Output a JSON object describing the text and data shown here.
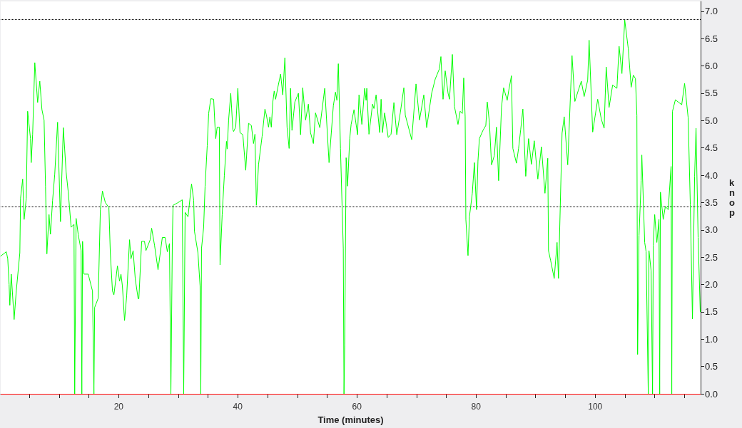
{
  "chart_data": {
    "type": "line",
    "xlabel": "Time (minutes)",
    "ylabel": "knop",
    "xlim": [
      0.2,
      117.7
    ],
    "xticks": [
      {
        "value": 5,
        "label": null
      },
      {
        "value": 10,
        "label": null
      },
      {
        "value": 15,
        "label": null
      },
      20,
      {
        "value": 25,
        "label": null
      },
      {
        "value": 30,
        "label": null
      },
      {
        "value": 35,
        "label": null
      },
      40,
      {
        "value": 45,
        "label": null
      },
      {
        "value": 50,
        "label": null
      },
      {
        "value": 55,
        "label": null
      },
      60,
      {
        "value": 65,
        "label": null
      },
      {
        "value": 70,
        "label": null
      },
      {
        "value": 75,
        "label": null
      },
      80,
      {
        "value": 85,
        "label": null
      },
      {
        "value": 90,
        "label": null
      },
      {
        "value": 95,
        "label": null
      },
      100,
      {
        "value": 105,
        "label": null
      },
      {
        "value": 110,
        "label": null
      },
      {
        "value": 115,
        "label": null
      }
    ],
    "ylim": [
      0,
      7.18
    ],
    "yticks": [
      {
        "value": 0,
        "label": "0.0"
      },
      0.5,
      {
        "value": 1,
        "label": "1.0"
      },
      1.5,
      {
        "value": 2,
        "label": "2.0"
      },
      2.5,
      {
        "value": 3,
        "label": "3.0"
      },
      3.5,
      {
        "value": 4,
        "label": "4.0"
      },
      4.5,
      {
        "value": 5,
        "label": "5.0"
      },
      5.5,
      {
        "value": 6,
        "label": "6.0"
      },
      6.5,
      {
        "value": 7,
        "label": "7.0"
      }
    ],
    "grid": false,
    "marker": "none",
    "line_style": "solid",
    "ref_lines": [
      {
        "axis": "y",
        "value": 6.85,
        "color": "#000000",
        "line_style": "dotted"
      },
      {
        "axis": "y",
        "value": 3.43,
        "color": "#000000",
        "line_style": "dotted"
      },
      {
        "axis": "y",
        "value": 0,
        "color": "#ff0000",
        "line_style": "solid"
      }
    ],
    "series": [
      {
        "color": "#00ff00",
        "x": [
          0.2,
          1.14,
          1.38,
          1.61,
          1.73,
          1.97,
          2.45,
          2.81,
          3.41,
          3.53,
          3.89,
          4.13,
          4.49,
          4.72,
          5.2,
          5.32,
          5.56,
          5.92,
          6.4,
          6.76,
          7.12,
          7.48,
          7.72,
          7.95,
          8.31,
          8.55,
          8.91,
          9.27,
          9.75,
          10.23,
          10.71,
          11.18,
          11.54,
          12.02,
          12.5,
          12.62,
          12.86,
          13.22,
          13.7,
          13.82,
          13.94,
          14.17,
          14.89,
          15.61,
          15.85,
          15.97,
          16.57,
          16.93,
          17.28,
          17.76,
          18.36,
          18.6,
          18.96,
          19.2,
          19.8,
          20.15,
          20.39,
          20.63,
          20.99,
          21.35,
          21.83,
          22.07,
          22.43,
          22.79,
          23.27,
          23.39,
          23.86,
          24.34,
          24.58,
          25.3,
          25.54,
          26.02,
          26.61,
          27.33,
          27.81,
          28.17,
          28.53,
          28.77,
          29.01,
          29.13,
          29.84,
          30.68,
          30.92,
          31.16,
          31.64,
          32.24,
          32.6,
          32.72,
          33.31,
          33.67,
          33.79,
          33.91,
          34.27,
          34.51,
          34.87,
          35.11,
          35.47,
          35.95,
          36.18,
          36.3,
          36.54,
          36.9,
          37.02,
          37.38,
          37.74,
          38.1,
          38.22,
          38.46,
          38.82,
          39.17,
          39.29,
          39.65,
          40.01,
          40.37,
          40.85,
          41.33,
          41.81,
          42.28,
          42.64,
          42.88,
          43.12,
          43.48,
          44.08,
          44.56,
          44.8,
          45.16,
          45.39,
          45.63,
          45.87,
          46.11,
          46.35,
          46.71,
          47.19,
          47.55,
          47.91,
          48.27,
          48.62,
          48.86,
          49.1,
          49.58,
          50.18,
          50.54,
          50.9,
          51.38,
          51.85,
          52.21,
          52.69,
          53.05,
          53.77,
          54.6,
          55.32,
          56.04,
          56.4,
          56.64,
          56.88,
          57.24,
          57.71,
          57.83,
          57.95,
          58.19,
          58.43,
          58.79,
          59.03,
          59.51,
          60.11,
          60.35,
          60.83,
          61.3,
          61.54,
          61.66,
          62.02,
          62.62,
          62.86,
          63.22,
          63.82,
          64.06,
          64.29,
          64.65,
          65.25,
          65.73,
          66.21,
          66.69,
          67.28,
          67.88,
          68.12,
          69.2,
          69.92,
          70.51,
          71.23,
          71.71,
          72.55,
          73.15,
          73.86,
          74.1,
          74.46,
          74.82,
          75.3,
          75.54,
          76.02,
          76.37,
          76.97,
          77.33,
          77.69,
          77.93,
          78.17,
          78.29,
          78.65,
          78.89,
          79.37,
          79.72,
          80.08,
          80.32,
          80.56,
          81.16,
          81.64,
          81.88,
          82.24,
          82.6,
          83.07,
          83.43,
          83.79,
          84.27,
          84.63,
          85.23,
          85.47,
          85.94,
          86.18,
          86.78,
          87.14,
          87.5,
          87.86,
          88.34,
          88.82,
          89.29,
          89.77,
          90.37,
          90.97,
          91.57,
          92.04,
          92.16,
          92.52,
          93.12,
          93.6,
          93.84,
          94.44,
          94.8,
          95.39,
          96.11,
          96.59,
          97.19,
          97.67,
          98.15,
          98.74,
          98.98,
          99.58,
          100.42,
          101.02,
          101.5,
          101.85,
          102.33,
          102.93,
          103.65,
          104.01,
          104.49,
          104.96,
          105.56,
          106.04,
          106.4,
          106.76,
          107.0,
          107.12,
          107.36,
          107.72,
          107.83,
          108.31,
          108.55,
          108.91,
          109.03,
          109.39,
          109.63,
          109.75,
          109.99,
          110.35,
          110.71,
          110.83,
          110.95,
          111.42,
          111.78,
          112.26,
          112.74,
          112.86,
          112.98,
          113.46,
          114.05,
          114.53,
          115.01,
          115.61,
          115.97,
          116.33,
          116.69,
          116.93,
          117.28,
          117.64
        ],
        "values": [
          2.52,
          2.6,
          2.47,
          2.0,
          1.62,
          2.19,
          1.36,
          1.88,
          2.58,
          3.58,
          3.93,
          3.19,
          3.58,
          5.17,
          4.67,
          4.23,
          4.75,
          6.06,
          5.33,
          5.72,
          5.2,
          5.01,
          3.8,
          2.56,
          3.28,
          2.92,
          3.54,
          4.02,
          4.97,
          3.15,
          4.87,
          4.06,
          3.69,
          3.05,
          3.1,
          0,
          3.21,
          2.91,
          2.62,
          0,
          2.79,
          2.19,
          2.19,
          1.88,
          0,
          1.58,
          1.75,
          3.37,
          3.71,
          3.5,
          3.41,
          2.58,
          1.88,
          1.81,
          2.34,
          2.06,
          2.19,
          1.97,
          1.34,
          1.8,
          2.82,
          2.47,
          2.62,
          2.1,
          1.74,
          1.74,
          2.79,
          2.79,
          2.62,
          2.82,
          3.03,
          2.72,
          2.27,
          2.86,
          2.86,
          2.6,
          2.75,
          0,
          2.79,
          3.45,
          3.49,
          3.55,
          0,
          3.32,
          3.24,
          3.84,
          3.54,
          2.98,
          2.58,
          1.97,
          0,
          2.66,
          3.05,
          3.8,
          4.54,
          5.13,
          5.4,
          5.39,
          4.88,
          4.67,
          4.88,
          4.88,
          2.36,
          3.28,
          3.99,
          4.62,
          4.48,
          5.01,
          5.5,
          4.84,
          4.8,
          4.88,
          5.59,
          4.78,
          4.74,
          4.09,
          4.95,
          4.91,
          4.58,
          4.75,
          3.45,
          4.19,
          4.71,
          5.21,
          5.1,
          4.88,
          5.07,
          4.88,
          5.33,
          5.54,
          5.39,
          5.6,
          5.85,
          5.47,
          6.15,
          4.88,
          4.49,
          5.59,
          4.82,
          5.34,
          5.5,
          4.74,
          5.6,
          5.01,
          5.3,
          4.78,
          4.58,
          5.14,
          4.87,
          5.59,
          4.23,
          5.27,
          5.52,
          5.37,
          6.04,
          4.49,
          2.66,
          0,
          0.89,
          4.32,
          3.8,
          4.67,
          4.93,
          5.2,
          4.74,
          5.47,
          4.93,
          5.59,
          5.37,
          5.59,
          4.75,
          5.3,
          5.22,
          5.47,
          4.78,
          5.39,
          4.78,
          5.14,
          4.69,
          4.75,
          5.33,
          4.74,
          5.14,
          5.6,
          5.1,
          4.65,
          5.67,
          5.01,
          5.47,
          4.87,
          5.5,
          5.76,
          5.95,
          6.17,
          5.39,
          5.91,
          5.5,
          5.39,
          6.21,
          5.26,
          4.93,
          5.17,
          5.13,
          5.78,
          5.07,
          3.19,
          2.53,
          3.24,
          3.67,
          4.23,
          3.37,
          4.26,
          4.67,
          4.82,
          4.91,
          5.34,
          4.97,
          4.19,
          4.36,
          4.88,
          3.9,
          5.24,
          5.6,
          5.37,
          5.54,
          5.82,
          4.49,
          4.22,
          4.49,
          4.84,
          5.21,
          3.98,
          4.67,
          4.2,
          4.63,
          3.93,
          4.52,
          3.67,
          4.31,
          2.62,
          2.44,
          2.11,
          2.77,
          2.11,
          4.77,
          5.07,
          4.19,
          6.19,
          5.35,
          5.56,
          5.72,
          5.44,
          5.74,
          6.47,
          4.79,
          5.39,
          5.03,
          4.86,
          5.98,
          5.24,
          5.65,
          5.59,
          6.36,
          5.86,
          6.84,
          6.31,
          5.61,
          5.83,
          5.77,
          5.09,
          0.72,
          2.9,
          3.9,
          4.37,
          2.77,
          2.6,
          0,
          2.62,
          2.25,
          0,
          2.72,
          3.28,
          2.77,
          3.19,
          0,
          3.69,
          3.19,
          3.43,
          3.37,
          4.16,
          0,
          5.17,
          5.38,
          5.33,
          5.29,
          5.68,
          5.05,
          3.46,
          1.37,
          3.98,
          4.86,
          2.86,
          1.5
        ]
      }
    ]
  }
}
